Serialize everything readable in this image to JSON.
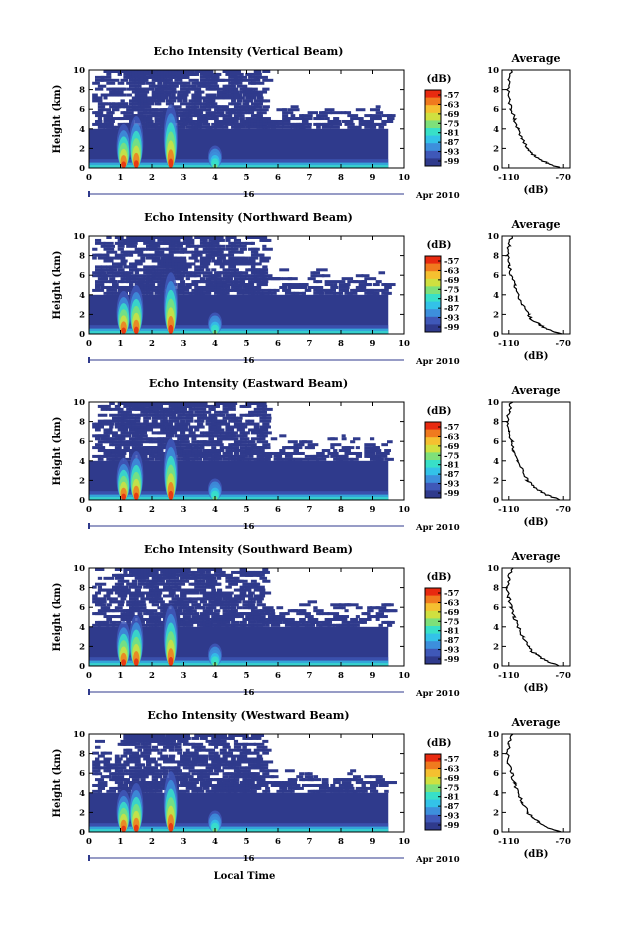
{
  "figure": {
    "xlabel": "Local Time",
    "date_label": "Apr 2010",
    "day_label": "16"
  },
  "colors": {
    "background": "#2f3a8c",
    "colormap": [
      "#2f3a8c",
      "#3f58b8",
      "#3d8fdc",
      "#33c2e8",
      "#38e0c8",
      "#7ee07a",
      "#d0e040",
      "#f5c030",
      "#f07a1e",
      "#e82a10"
    ]
  },
  "colorbar": {
    "unit": "(dB)",
    "ticks": [
      "-57",
      "-63",
      "-69",
      "-75",
      "-81",
      "-87",
      "-93",
      "-99"
    ]
  },
  "average": {
    "title": "Average",
    "xlabel": "(dB)",
    "xticks": [
      "-110",
      "-70"
    ]
  },
  "chart_data": [
    {
      "type": "heatmap",
      "title": "Echo Intensity (Vertical Beam)",
      "ylabel": "Height (km)",
      "xlim": [
        0,
        10
      ],
      "ylim": [
        0,
        10
      ],
      "xticks": [
        "0",
        "1",
        "2",
        "3",
        "4",
        "5",
        "6",
        "7",
        "8",
        "9",
        "10"
      ],
      "yticks": [
        "0",
        "2",
        "4",
        "6",
        "8",
        "10"
      ],
      "data_end_hour": 9.5,
      "plumes": [
        {
          "time": 1.1,
          "top": 4.5
        },
        {
          "time": 1.5,
          "top": 5.3
        },
        {
          "time": 2.6,
          "top": 6.5
        },
        {
          "time": 4.0,
          "top": 2.3
        }
      ],
      "profile": {
        "height": [
          0,
          0.5,
          1,
          1.5,
          2,
          3,
          4,
          5,
          6,
          7,
          8,
          9,
          10
        ],
        "db": [
          -72,
          -82,
          -88,
          -93,
          -96,
          -100,
          -103,
          -106,
          -108,
          -110,
          -111,
          -110,
          -108
        ]
      }
    },
    {
      "type": "heatmap",
      "title": "Echo Intensity (Northward Beam)",
      "ylabel": "Height (km)",
      "xlim": [
        0,
        10
      ],
      "ylim": [
        0,
        10
      ],
      "xticks": [
        "0",
        "1",
        "2",
        "3",
        "4",
        "5",
        "6",
        "7",
        "8",
        "9",
        "10"
      ],
      "yticks": [
        "0",
        "2",
        "4",
        "6",
        "8",
        "10"
      ],
      "data_end_hour": 9.5,
      "plumes": [
        {
          "time": 1.1,
          "top": 4.4
        },
        {
          "time": 1.5,
          "top": 5.0
        },
        {
          "time": 2.6,
          "top": 6.3
        },
        {
          "time": 4.0,
          "top": 2.2
        }
      ],
      "profile": {
        "height": [
          0,
          0.5,
          1,
          1.5,
          2,
          3,
          4,
          5,
          6,
          7,
          8,
          9,
          10
        ],
        "db": [
          -72,
          -82,
          -88,
          -93,
          -96,
          -100,
          -103,
          -106,
          -108,
          -110,
          -111,
          -110,
          -108
        ]
      }
    },
    {
      "type": "heatmap",
      "title": "Echo Intensity (Eastward Beam)",
      "ylabel": "Height (km)",
      "xlim": [
        0,
        10
      ],
      "ylim": [
        0,
        10
      ],
      "xticks": [
        "0",
        "1",
        "2",
        "3",
        "4",
        "5",
        "6",
        "7",
        "8",
        "9",
        "10"
      ],
      "yticks": [
        "0",
        "2",
        "4",
        "6",
        "8",
        "10"
      ],
      "data_end_hour": 9.5,
      "plumes": [
        {
          "time": 1.1,
          "top": 4.3
        },
        {
          "time": 1.5,
          "top": 5.0
        },
        {
          "time": 2.6,
          "top": 6.3
        },
        {
          "time": 4.0,
          "top": 2.2
        }
      ],
      "profile": {
        "height": [
          0,
          0.5,
          1,
          1.5,
          2,
          3,
          4,
          5,
          6,
          7,
          8,
          9,
          10
        ],
        "db": [
          -72,
          -82,
          -88,
          -93,
          -96,
          -100,
          -103,
          -106,
          -108,
          -110,
          -111,
          -110,
          -108
        ]
      }
    },
    {
      "type": "heatmap",
      "title": "Echo Intensity (Southward Beam)",
      "ylabel": "Height (km)",
      "xlim": [
        0,
        10
      ],
      "ylim": [
        0,
        10
      ],
      "xticks": [
        "0",
        "1",
        "2",
        "3",
        "4",
        "5",
        "6",
        "7",
        "8",
        "9",
        "10"
      ],
      "yticks": [
        "0",
        "2",
        "4",
        "6",
        "8",
        "10"
      ],
      "data_end_hour": 9.5,
      "plumes": [
        {
          "time": 1.1,
          "top": 4.6
        },
        {
          "time": 1.5,
          "top": 5.2
        },
        {
          "time": 2.6,
          "top": 6.2
        },
        {
          "time": 4.0,
          "top": 2.3
        }
      ],
      "profile": {
        "height": [
          0,
          0.5,
          1,
          1.5,
          2,
          3,
          4,
          5,
          6,
          7,
          8,
          9,
          10
        ],
        "db": [
          -72,
          -82,
          -88,
          -93,
          -96,
          -100,
          -103,
          -106,
          -108,
          -110,
          -111,
          -110,
          -108
        ]
      }
    },
    {
      "type": "heatmap",
      "title": "Echo Intensity (Westward Beam)",
      "ylabel": "Height (km)",
      "xlim": [
        0,
        10
      ],
      "ylim": [
        0,
        10
      ],
      "xticks": [
        "0",
        "1",
        "2",
        "3",
        "4",
        "5",
        "6",
        "7",
        "8",
        "9",
        "10"
      ],
      "yticks": [
        "0",
        "2",
        "4",
        "6",
        "8",
        "10"
      ],
      "data_end_hour": 9.5,
      "plumes": [
        {
          "time": 1.1,
          "top": 4.3
        },
        {
          "time": 1.5,
          "top": 5.0
        },
        {
          "time": 2.6,
          "top": 6.2
        },
        {
          "time": 4.0,
          "top": 2.2
        }
      ],
      "profile": {
        "height": [
          0,
          0.5,
          1,
          1.5,
          2,
          3,
          4,
          5,
          6,
          7,
          8,
          9,
          10
        ],
        "db": [
          -72,
          -82,
          -88,
          -93,
          -96,
          -100,
          -103,
          -106,
          -108,
          -110,
          -111,
          -110,
          -108
        ]
      }
    }
  ]
}
